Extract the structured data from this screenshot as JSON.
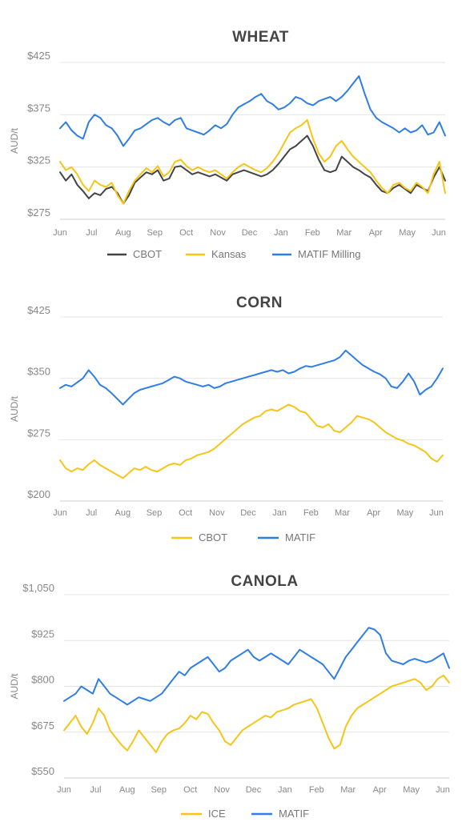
{
  "chart_data": [
    {
      "type": "line",
      "title": "WHEAT",
      "ylabel": "AUD/t",
      "ylim": [
        275,
        425
      ],
      "yticks": [
        275,
        325,
        375,
        425
      ],
      "ytick_labels": [
        "$275",
        "$325",
        "$375",
        "$425"
      ],
      "x_labels": [
        "Jun",
        "Jul",
        "Aug",
        "Sep",
        "Oct",
        "Nov",
        "Dec",
        "Jan",
        "Feb",
        "Mar",
        "Apr",
        "May",
        "Jun"
      ],
      "grid": true,
      "legend_position": "bottom",
      "series": [
        {
          "name": "CBOT",
          "color": "#444444",
          "values": [
            320,
            312,
            318,
            308,
            302,
            295,
            300,
            298,
            304,
            306,
            300,
            290,
            298,
            310,
            315,
            320,
            318,
            322,
            312,
            314,
            325,
            326,
            322,
            318,
            320,
            318,
            316,
            318,
            315,
            312,
            318,
            320,
            322,
            320,
            318,
            316,
            318,
            322,
            328,
            335,
            342,
            345,
            350,
            355,
            345,
            332,
            322,
            320,
            322,
            335,
            330,
            325,
            322,
            318,
            315,
            308,
            302,
            300,
            305,
            308,
            304,
            300,
            308,
            305,
            302,
            315,
            325,
            312
          ]
        },
        {
          "name": "Kansas",
          "color": "#f5c518",
          "values": [
            330,
            322,
            325,
            318,
            308,
            302,
            312,
            308,
            306,
            310,
            298,
            290,
            302,
            312,
            318,
            324,
            320,
            326,
            316,
            320,
            330,
            332,
            326,
            322,
            325,
            322,
            320,
            322,
            318,
            314,
            320,
            325,
            328,
            325,
            322,
            320,
            324,
            330,
            338,
            348,
            358,
            362,
            365,
            370,
            352,
            338,
            330,
            335,
            345,
            350,
            342,
            335,
            330,
            325,
            320,
            312,
            305,
            300,
            308,
            310,
            305,
            302,
            310,
            306,
            300,
            318,
            330,
            300
          ]
        },
        {
          "name": "MATIF Milling",
          "color": "#2f7ee6",
          "values": [
            362,
            368,
            360,
            355,
            352,
            368,
            375,
            372,
            365,
            362,
            355,
            345,
            352,
            360,
            362,
            366,
            370,
            372,
            368,
            365,
            370,
            372,
            362,
            360,
            358,
            356,
            360,
            365,
            362,
            366,
            375,
            382,
            385,
            388,
            392,
            395,
            388,
            385,
            380,
            382,
            386,
            392,
            390,
            386,
            384,
            388,
            390,
            392,
            388,
            392,
            398,
            405,
            412,
            395,
            380,
            372,
            368,
            365,
            362,
            358,
            362,
            358,
            360,
            365,
            356,
            358,
            368,
            355
          ]
        }
      ]
    },
    {
      "type": "line",
      "title": "CORN",
      "ylabel": "AUD/t",
      "ylim": [
        200,
        425
      ],
      "yticks": [
        200,
        275,
        350,
        425
      ],
      "ytick_labels": [
        "$200",
        "$275",
        "$350",
        "$425"
      ],
      "x_labels": [
        "Jun",
        "Jul",
        "Aug",
        "Sep",
        "Oct",
        "Nov",
        "Dec",
        "Jan",
        "Feb",
        "Mar",
        "Apr",
        "May",
        "Jun"
      ],
      "grid": true,
      "legend_position": "bottom",
      "series": [
        {
          "name": "CBOT",
          "color": "#f5c518",
          "values": [
            250,
            240,
            236,
            240,
            238,
            245,
            250,
            244,
            240,
            236,
            232,
            228,
            234,
            240,
            238,
            242,
            238,
            236,
            240,
            244,
            246,
            244,
            250,
            252,
            256,
            258,
            260,
            264,
            270,
            276,
            282,
            288,
            294,
            298,
            302,
            304,
            310,
            312,
            310,
            314,
            318,
            315,
            310,
            308,
            300,
            292,
            290,
            294,
            286,
            284,
            290,
            296,
            304,
            302,
            300,
            296,
            290,
            284,
            280,
            276,
            274,
            270,
            268,
            264,
            260,
            252,
            248,
            256
          ]
        },
        {
          "name": "MATIF",
          "color": "#2f7ee6",
          "values": [
            338,
            342,
            340,
            345,
            350,
            360,
            352,
            342,
            338,
            332,
            325,
            318,
            325,
            332,
            336,
            338,
            340,
            342,
            344,
            348,
            352,
            350,
            346,
            344,
            342,
            340,
            342,
            338,
            340,
            344,
            346,
            348,
            350,
            352,
            354,
            356,
            358,
            360,
            358,
            360,
            356,
            358,
            362,
            365,
            364,
            366,
            368,
            370,
            372,
            376,
            384,
            378,
            372,
            366,
            362,
            358,
            355,
            350,
            340,
            338,
            346,
            356,
            346,
            330,
            336,
            340,
            350,
            362
          ]
        }
      ]
    },
    {
      "type": "line",
      "title": "CANOLA",
      "ylabel": "AUD/t",
      "ylim": [
        550,
        1050
      ],
      "yticks": [
        550,
        675,
        800,
        925,
        1050
      ],
      "ytick_labels": [
        "$550",
        "$675",
        "$800",
        "$925",
        "$1,050"
      ],
      "x_labels": [
        "Jun",
        "Jul",
        "Aug",
        "Sep",
        "Oct",
        "Nov",
        "Dec",
        "Jan",
        "Feb",
        "Mar",
        "Apr",
        "May",
        "Jun"
      ],
      "grid": true,
      "legend_position": "bottom",
      "series": [
        {
          "name": "ICE",
          "color": "#f5c518",
          "values": [
            680,
            700,
            720,
            690,
            670,
            700,
            740,
            720,
            680,
            660,
            640,
            625,
            650,
            680,
            660,
            640,
            620,
            650,
            670,
            680,
            685,
            700,
            720,
            710,
            730,
            725,
            700,
            680,
            650,
            640,
            660,
            680,
            690,
            700,
            710,
            720,
            715,
            730,
            735,
            740,
            750,
            755,
            760,
            765,
            740,
            700,
            660,
            630,
            640,
            690,
            720,
            740,
            750,
            760,
            770,
            780,
            790,
            800,
            805,
            810,
            815,
            820,
            810,
            790,
            800,
            820,
            830,
            810
          ]
        },
        {
          "name": "MATIF",
          "color": "#2f7ee6",
          "values": [
            760,
            770,
            780,
            800,
            790,
            780,
            820,
            800,
            780,
            770,
            760,
            750,
            760,
            770,
            765,
            760,
            770,
            780,
            800,
            820,
            840,
            830,
            850,
            860,
            870,
            880,
            860,
            840,
            850,
            870,
            880,
            890,
            900,
            880,
            870,
            880,
            890,
            880,
            870,
            860,
            880,
            900,
            890,
            880,
            870,
            860,
            840,
            820,
            850,
            880,
            900,
            920,
            940,
            960,
            955,
            940,
            890,
            870,
            865,
            860,
            870,
            875,
            870,
            865,
            870,
            880,
            890,
            850
          ]
        }
      ]
    }
  ]
}
